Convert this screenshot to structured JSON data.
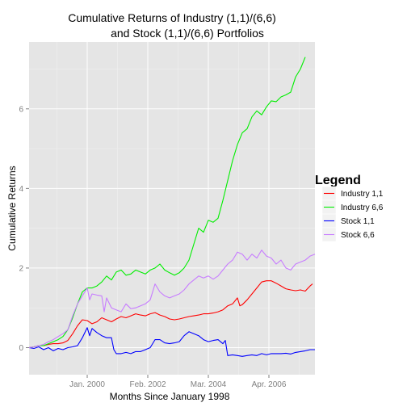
{
  "chart_data": {
    "type": "line",
    "title_lines": [
      "Cumulative Returns of Industry (1,1)/(6,6)",
      "and Stock (1,1)/(6,6) Portfolios"
    ],
    "xlabel": "Months Since January 1998",
    "ylabel": "Cumulative Returns",
    "x_ticks": [
      "Jan. 2000",
      "Feb. 2002",
      "Mar. 2004",
      "Apr. 2006"
    ],
    "x_tick_months": [
      24,
      49,
      74,
      99
    ],
    "xlim": [
      0,
      118
    ],
    "y_ticks": [
      "0",
      "2",
      "4",
      "6"
    ],
    "y_tick_values": [
      0,
      2,
      4,
      6
    ],
    "ylim": [
      -0.68,
      7.68
    ],
    "grid": true,
    "legend": {
      "title": "Legend",
      "position": "right"
    },
    "series": [
      {
        "name": "Industry 1,1",
        "color": "#ff0000",
        "points": [
          [
            0,
            0.0
          ],
          [
            2,
            0.02
          ],
          [
            4,
            0.05
          ],
          [
            6,
            0.05
          ],
          [
            8,
            0.08
          ],
          [
            10,
            0.1
          ],
          [
            12,
            0.1
          ],
          [
            14,
            0.12
          ],
          [
            16,
            0.18
          ],
          [
            18,
            0.35
          ],
          [
            20,
            0.55
          ],
          [
            22,
            0.7
          ],
          [
            24,
            0.68
          ],
          [
            26,
            0.6
          ],
          [
            28,
            0.65
          ],
          [
            30,
            0.75
          ],
          [
            32,
            0.7
          ],
          [
            34,
            0.65
          ],
          [
            36,
            0.72
          ],
          [
            38,
            0.78
          ],
          [
            40,
            0.75
          ],
          [
            42,
            0.8
          ],
          [
            44,
            0.85
          ],
          [
            46,
            0.82
          ],
          [
            48,
            0.8
          ],
          [
            50,
            0.85
          ],
          [
            52,
            0.88
          ],
          [
            54,
            0.82
          ],
          [
            56,
            0.78
          ],
          [
            58,
            0.72
          ],
          [
            60,
            0.7
          ],
          [
            62,
            0.72
          ],
          [
            64,
            0.75
          ],
          [
            66,
            0.78
          ],
          [
            68,
            0.8
          ],
          [
            70,
            0.82
          ],
          [
            72,
            0.85
          ],
          [
            74,
            0.85
          ],
          [
            76,
            0.87
          ],
          [
            78,
            0.9
          ],
          [
            80,
            0.95
          ],
          [
            82,
            1.05
          ],
          [
            84,
            1.1
          ],
          [
            86,
            1.25
          ],
          [
            87,
            1.05
          ],
          [
            88,
            1.08
          ],
          [
            90,
            1.2
          ],
          [
            92,
            1.35
          ],
          [
            94,
            1.5
          ],
          [
            96,
            1.65
          ],
          [
            98,
            1.68
          ],
          [
            100,
            1.68
          ],
          [
            102,
            1.62
          ],
          [
            104,
            1.55
          ],
          [
            106,
            1.48
          ],
          [
            108,
            1.45
          ],
          [
            110,
            1.43
          ],
          [
            112,
            1.45
          ],
          [
            114,
            1.42
          ],
          [
            116,
            1.55
          ],
          [
            117,
            1.6
          ]
        ]
      },
      {
        "name": "Industry 6,6",
        "color": "#00ee00",
        "points": [
          [
            0,
            0.0
          ],
          [
            2,
            0.02
          ],
          [
            4,
            0.05
          ],
          [
            6,
            0.05
          ],
          [
            8,
            0.1
          ],
          [
            10,
            0.15
          ],
          [
            12,
            0.2
          ],
          [
            14,
            0.28
          ],
          [
            16,
            0.45
          ],
          [
            18,
            0.75
          ],
          [
            20,
            1.1
          ],
          [
            22,
            1.4
          ],
          [
            24,
            1.5
          ],
          [
            26,
            1.5
          ],
          [
            28,
            1.55
          ],
          [
            30,
            1.65
          ],
          [
            32,
            1.8
          ],
          [
            34,
            1.7
          ],
          [
            36,
            1.9
          ],
          [
            38,
            1.95
          ],
          [
            40,
            1.82
          ],
          [
            42,
            1.85
          ],
          [
            44,
            1.95
          ],
          [
            46,
            1.9
          ],
          [
            48,
            1.85
          ],
          [
            50,
            1.95
          ],
          [
            52,
            2.0
          ],
          [
            54,
            2.1
          ],
          [
            56,
            1.95
          ],
          [
            58,
            1.88
          ],
          [
            60,
            1.82
          ],
          [
            62,
            1.88
          ],
          [
            64,
            2.0
          ],
          [
            66,
            2.2
          ],
          [
            68,
            2.6
          ],
          [
            70,
            3.0
          ],
          [
            72,
            2.9
          ],
          [
            74,
            3.2
          ],
          [
            76,
            3.15
          ],
          [
            78,
            3.25
          ],
          [
            80,
            3.7
          ],
          [
            82,
            4.2
          ],
          [
            84,
            4.7
          ],
          [
            86,
            5.1
          ],
          [
            88,
            5.4
          ],
          [
            90,
            5.5
          ],
          [
            92,
            5.8
          ],
          [
            94,
            5.95
          ],
          [
            96,
            5.85
          ],
          [
            98,
            6.05
          ],
          [
            100,
            6.2
          ],
          [
            102,
            6.18
          ],
          [
            104,
            6.3
          ],
          [
            106,
            6.35
          ],
          [
            108,
            6.42
          ],
          [
            110,
            6.8
          ],
          [
            112,
            7.0
          ],
          [
            114,
            7.3
          ]
        ]
      },
      {
        "name": "Stock 1,1",
        "color": "#0000ff",
        "points": [
          [
            0,
            0.0
          ],
          [
            2,
            -0.02
          ],
          [
            4,
            0.02
          ],
          [
            6,
            -0.05
          ],
          [
            8,
            0.0
          ],
          [
            10,
            -0.08
          ],
          [
            12,
            -0.02
          ],
          [
            14,
            -0.05
          ],
          [
            16,
            0.0
          ],
          [
            18,
            0.02
          ],
          [
            20,
            0.05
          ],
          [
            22,
            0.25
          ],
          [
            24,
            0.5
          ],
          [
            25,
            0.3
          ],
          [
            26,
            0.48
          ],
          [
            28,
            0.38
          ],
          [
            30,
            0.3
          ],
          [
            32,
            0.25
          ],
          [
            34,
            0.25
          ],
          [
            35,
            -0.05
          ],
          [
            36,
            -0.15
          ],
          [
            38,
            -0.15
          ],
          [
            40,
            -0.12
          ],
          [
            42,
            -0.15
          ],
          [
            44,
            -0.1
          ],
          [
            46,
            -0.1
          ],
          [
            48,
            -0.05
          ],
          [
            50,
            0.0
          ],
          [
            52,
            0.2
          ],
          [
            54,
            0.2
          ],
          [
            56,
            0.12
          ],
          [
            58,
            0.1
          ],
          [
            60,
            0.12
          ],
          [
            62,
            0.15
          ],
          [
            64,
            0.3
          ],
          [
            66,
            0.4
          ],
          [
            68,
            0.35
          ],
          [
            70,
            0.3
          ],
          [
            72,
            0.2
          ],
          [
            74,
            0.15
          ],
          [
            76,
            0.18
          ],
          [
            78,
            0.2
          ],
          [
            80,
            0.1
          ],
          [
            81,
            0.18
          ],
          [
            82,
            -0.2
          ],
          [
            84,
            -0.18
          ],
          [
            86,
            -0.2
          ],
          [
            88,
            -0.22
          ],
          [
            90,
            -0.2
          ],
          [
            92,
            -0.18
          ],
          [
            94,
            -0.2
          ],
          [
            96,
            -0.15
          ],
          [
            98,
            -0.18
          ],
          [
            100,
            -0.15
          ],
          [
            102,
            -0.15
          ],
          [
            104,
            -0.15
          ],
          [
            106,
            -0.14
          ],
          [
            108,
            -0.16
          ],
          [
            110,
            -0.12
          ],
          [
            112,
            -0.1
          ],
          [
            114,
            -0.08
          ],
          [
            116,
            -0.05
          ],
          [
            118,
            -0.05
          ]
        ]
      },
      {
        "name": "Stock 6,6",
        "color": "#c77cff",
        "points": [
          [
            0,
            0.0
          ],
          [
            2,
            0.02
          ],
          [
            4,
            0.05
          ],
          [
            6,
            0.08
          ],
          [
            8,
            0.15
          ],
          [
            10,
            0.2
          ],
          [
            12,
            0.28
          ],
          [
            14,
            0.35
          ],
          [
            16,
            0.45
          ],
          [
            18,
            0.8
          ],
          [
            20,
            1.1
          ],
          [
            22,
            1.3
          ],
          [
            24,
            1.5
          ],
          [
            25,
            1.2
          ],
          [
            26,
            1.35
          ],
          [
            28,
            1.32
          ],
          [
            30,
            1.3
          ],
          [
            31,
            0.9
          ],
          [
            32,
            1.25
          ],
          [
            34,
            1.0
          ],
          [
            36,
            0.95
          ],
          [
            38,
            0.9
          ],
          [
            40,
            1.1
          ],
          [
            42,
            0.98
          ],
          [
            44,
            1.0
          ],
          [
            46,
            1.05
          ],
          [
            48,
            1.1
          ],
          [
            50,
            1.2
          ],
          [
            52,
            1.6
          ],
          [
            54,
            1.4
          ],
          [
            56,
            1.3
          ],
          [
            58,
            1.25
          ],
          [
            60,
            1.3
          ],
          [
            62,
            1.35
          ],
          [
            64,
            1.45
          ],
          [
            66,
            1.6
          ],
          [
            68,
            1.7
          ],
          [
            70,
            1.8
          ],
          [
            72,
            1.75
          ],
          [
            74,
            1.8
          ],
          [
            76,
            1.72
          ],
          [
            78,
            1.8
          ],
          [
            80,
            1.95
          ],
          [
            82,
            2.1
          ],
          [
            84,
            2.2
          ],
          [
            86,
            2.4
          ],
          [
            88,
            2.35
          ],
          [
            90,
            2.2
          ],
          [
            92,
            2.35
          ],
          [
            94,
            2.25
          ],
          [
            96,
            2.45
          ],
          [
            98,
            2.3
          ],
          [
            100,
            2.25
          ],
          [
            102,
            2.1
          ],
          [
            104,
            2.2
          ],
          [
            106,
            2.0
          ],
          [
            108,
            1.95
          ],
          [
            110,
            2.1
          ],
          [
            112,
            2.15
          ],
          [
            114,
            2.2
          ],
          [
            116,
            2.3
          ],
          [
            118,
            2.35
          ]
        ]
      }
    ]
  }
}
